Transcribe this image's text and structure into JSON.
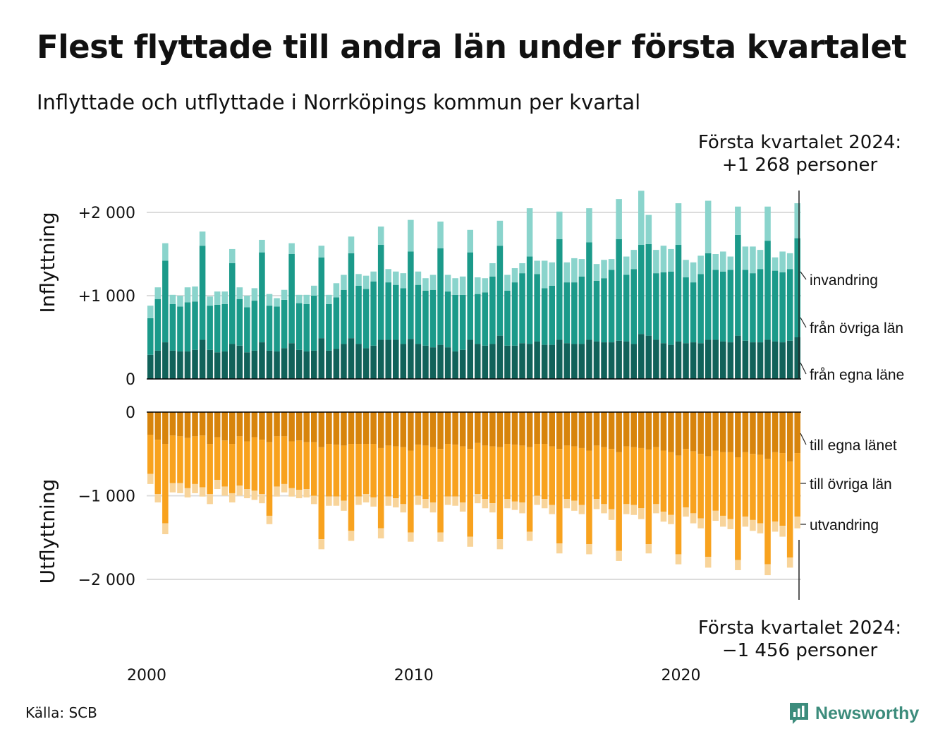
{
  "title": "Flest flyttade till andra län under första kvartalet",
  "subtitle": "Inflyttade och utflyttade i Norrköpings kommun per kvartal",
  "annotations": {
    "top": {
      "line1": "Första kvartalet 2024:",
      "line2": "+1 268 personer"
    },
    "bottom": {
      "line1": "Första kvartalet 2024:",
      "line2": "−1 456 personer"
    }
  },
  "source": "Källa: SCB",
  "brand": "Newsworthy",
  "colors": {
    "in_egna": "#11625a",
    "in_ovriga": "#1b9a8a",
    "in_invandring": "#8ad4cc",
    "out_egna": "#d7840c",
    "out_ovriga": "#f8a21e",
    "out_utvandring": "#f8d49a",
    "brand": "#3c8c7c"
  },
  "chart_data": [
    {
      "type": "bar",
      "stacked": true,
      "panel": "Inflyttning",
      "ylabel": "Inflyttning",
      "ylim": [
        0,
        2300
      ],
      "yticks": [
        {
          "value": 0,
          "label": "0"
        },
        {
          "value": 1000,
          "label": "+1 000"
        },
        {
          "value": 2000,
          "label": "+2 000"
        }
      ],
      "grid": true,
      "series_order_bottom_to_top": [
        "från egna läne",
        "från övriga län",
        "invandring"
      ],
      "bars": [
        [
          290,
          440,
          150
        ],
        [
          340,
          620,
          140
        ],
        [
          440,
          980,
          210
        ],
        [
          340,
          560,
          110
        ],
        [
          330,
          540,
          130
        ],
        [
          330,
          590,
          180
        ],
        [
          350,
          580,
          180
        ],
        [
          470,
          1130,
          170
        ],
        [
          350,
          530,
          110
        ],
        [
          320,
          570,
          160
        ],
        [
          330,
          570,
          150
        ],
        [
          420,
          970,
          170
        ],
        [
          400,
          560,
          140
        ],
        [
          320,
          540,
          140
        ],
        [
          340,
          600,
          150
        ],
        [
          440,
          1080,
          150
        ],
        [
          340,
          540,
          140
        ],
        [
          330,
          540,
          100
        ],
        [
          370,
          580,
          120
        ],
        [
          430,
          1070,
          130
        ],
        [
          350,
          560,
          100
        ],
        [
          330,
          570,
          110
        ],
        [
          340,
          660,
          120
        ],
        [
          490,
          970,
          140
        ],
        [
          340,
          560,
          110
        ],
        [
          360,
          620,
          170
        ],
        [
          420,
          650,
          180
        ],
        [
          490,
          1020,
          200
        ],
        [
          420,
          700,
          140
        ],
        [
          370,
          710,
          160
        ],
        [
          400,
          770,
          120
        ],
        [
          470,
          1140,
          220
        ],
        [
          470,
          690,
          160
        ],
        [
          470,
          660,
          160
        ],
        [
          420,
          670,
          180
        ],
        [
          480,
          1050,
          380
        ],
        [
          420,
          710,
          160
        ],
        [
          400,
          660,
          150
        ],
        [
          380,
          690,
          180
        ],
        [
          410,
          1160,
          320
        ],
        [
          380,
          670,
          200
        ],
        [
          330,
          680,
          200
        ],
        [
          350,
          660,
          220
        ],
        [
          470,
          1050,
          270
        ],
        [
          420,
          600,
          200
        ],
        [
          400,
          640,
          170
        ],
        [
          420,
          810,
          160
        ],
        [
          520,
          1080,
          300
        ],
        [
          400,
          660,
          190
        ],
        [
          400,
          760,
          170
        ],
        [
          430,
          840,
          120
        ],
        [
          420,
          1050,
          580
        ],
        [
          450,
          810,
          160
        ],
        [
          410,
          680,
          330
        ],
        [
          410,
          710,
          280
        ],
        [
          470,
          1210,
          330
        ],
        [
          430,
          730,
          240
        ],
        [
          420,
          740,
          290
        ],
        [
          420,
          810,
          210
        ],
        [
          470,
          1170,
          410
        ],
        [
          450,
          730,
          200
        ],
        [
          440,
          770,
          220
        ],
        [
          440,
          870,
          130
        ],
        [
          460,
          1220,
          480
        ],
        [
          450,
          800,
          220
        ],
        [
          420,
          900,
          230
        ],
        [
          540,
          1070,
          650
        ],
        [
          520,
          1100,
          350
        ],
        [
          470,
          800,
          280
        ],
        [
          430,
          850,
          320
        ],
        [
          410,
          880,
          270
        ],
        [
          450,
          1160,
          500
        ],
        [
          430,
          790,
          210
        ],
        [
          440,
          720,
          240
        ],
        [
          430,
          830,
          220
        ],
        [
          470,
          1040,
          630
        ],
        [
          470,
          840,
          190
        ],
        [
          450,
          840,
          240
        ],
        [
          440,
          870,
          160
        ],
        [
          520,
          1210,
          340
        ],
        [
          460,
          850,
          280
        ],
        [
          440,
          830,
          320
        ],
        [
          440,
          880,
          230
        ],
        [
          470,
          1190,
          410
        ],
        [
          450,
          850,
          160
        ],
        [
          440,
          840,
          250
        ],
        [
          460,
          860,
          190
        ],
        [
          500,
          1190,
          420
        ]
      ],
      "legend": [
        "invandring",
        "från övriga län",
        "från egna läne"
      ],
      "x_range": [
        2000,
        2024.5
      ],
      "xticks": [
        {
          "value": 2000,
          "label": "2000"
        },
        {
          "value": 2010,
          "label": "2010"
        },
        {
          "value": 2020,
          "label": "2020"
        }
      ]
    },
    {
      "type": "bar",
      "stacked": true,
      "panel": "Utflyttning",
      "ylabel": "Utflyttning",
      "ylim": [
        -2300,
        0
      ],
      "yticks": [
        {
          "value": 0,
          "label": "0"
        },
        {
          "value": -1000,
          "label": "−1 000"
        },
        {
          "value": -2000,
          "label": "−2 000"
        }
      ],
      "grid": true,
      "series_order_top_to_bottom": [
        "till egna länet",
        "till övriga län",
        "utvandring"
      ],
      "bars": [
        [
          -270,
          -470,
          -120
        ],
        [
          -330,
          -650,
          -100
        ],
        [
          -380,
          -950,
          -130
        ],
        [
          -280,
          -570,
          -110
        ],
        [
          -290,
          -560,
          -120
        ],
        [
          -310,
          -600,
          -110
        ],
        [
          -290,
          -570,
          -110
        ],
        [
          -280,
          -620,
          -110
        ],
        [
          -380,
          -600,
          -120
        ],
        [
          -300,
          -510,
          -110
        ],
        [
          -340,
          -550,
          -110
        ],
        [
          -380,
          -590,
          -110
        ],
        [
          -290,
          -590,
          -120
        ],
        [
          -350,
          -570,
          -110
        ],
        [
          -300,
          -640,
          -110
        ],
        [
          -330,
          -650,
          -110
        ],
        [
          -360,
          -880,
          -100
        ],
        [
          -290,
          -600,
          -120
        ],
        [
          -290,
          -570,
          -100
        ],
        [
          -350,
          -560,
          -100
        ],
        [
          -340,
          -590,
          -100
        ],
        [
          -360,
          -560,
          -100
        ],
        [
          -360,
          -640,
          -100
        ],
        [
          -420,
          -1100,
          -120
        ],
        [
          -380,
          -630,
          -110
        ],
        [
          -390,
          -620,
          -110
        ],
        [
          -400,
          -660,
          -120
        ],
        [
          -380,
          -1040,
          -120
        ],
        [
          -380,
          -630,
          -100
        ],
        [
          -380,
          -600,
          -100
        ],
        [
          -380,
          -640,
          -110
        ],
        [
          -430,
          -960,
          -120
        ],
        [
          -400,
          -610,
          -110
        ],
        [
          -410,
          -620,
          -110
        ],
        [
          -420,
          -680,
          -100
        ],
        [
          -460,
          -980,
          -110
        ],
        [
          -390,
          -610,
          -110
        ],
        [
          -400,
          -640,
          -110
        ],
        [
          -420,
          -660,
          -120
        ],
        [
          -440,
          -1000,
          -110
        ],
        [
          -380,
          -630,
          -100
        ],
        [
          -390,
          -620,
          -110
        ],
        [
          -410,
          -670,
          -110
        ],
        [
          -440,
          -1050,
          -120
        ],
        [
          -370,
          -610,
          -110
        ],
        [
          -400,
          -640,
          -110
        ],
        [
          -410,
          -680,
          -110
        ],
        [
          -420,
          -1100,
          -120
        ],
        [
          -380,
          -660,
          -110
        ],
        [
          -390,
          -680,
          -100
        ],
        [
          -400,
          -680,
          -130
        ],
        [
          -420,
          -1010,
          -110
        ],
        [
          -380,
          -620,
          -110
        ],
        [
          -380,
          -660,
          -110
        ],
        [
          -410,
          -700,
          -110
        ],
        [
          -440,
          -1130,
          -120
        ],
        [
          -400,
          -640,
          -110
        ],
        [
          -410,
          -650,
          -120
        ],
        [
          -430,
          -680,
          -110
        ],
        [
          -460,
          -1120,
          -120
        ],
        [
          -400,
          -640,
          -120
        ],
        [
          -420,
          -680,
          -110
        ],
        [
          -440,
          -720,
          -130
        ],
        [
          -480,
          -1180,
          -120
        ],
        [
          -410,
          -690,
          -120
        ],
        [
          -420,
          -690,
          -120
        ],
        [
          -430,
          -720,
          -130
        ],
        [
          -450,
          -1130,
          -110
        ],
        [
          -420,
          -680,
          -110
        ],
        [
          -460,
          -730,
          -120
        ],
        [
          -480,
          -750,
          -110
        ],
        [
          -520,
          -1180,
          -120
        ],
        [
          -440,
          -700,
          -110
        ],
        [
          -470,
          -740,
          -120
        ],
        [
          -500,
          -770,
          -120
        ],
        [
          -530,
          -1200,
          -130
        ],
        [
          -460,
          -720,
          -120
        ],
        [
          -480,
          -760,
          -130
        ],
        [
          -480,
          -800,
          -120
        ],
        [
          -540,
          -1230,
          -120
        ],
        [
          -480,
          -770,
          -120
        ],
        [
          -500,
          -790,
          -130
        ],
        [
          -510,
          -820,
          -120
        ],
        [
          -560,
          -1260,
          -130
        ],
        [
          -480,
          -830,
          -120
        ],
        [
          -490,
          -870,
          -130
        ],
        [
          -590,
          -1150,
          -120
        ],
        [
          -490,
          -760,
          -140
        ]
      ],
      "legend": [
        "till egna länet",
        "till övriga län",
        "utvandring"
      ]
    }
  ]
}
